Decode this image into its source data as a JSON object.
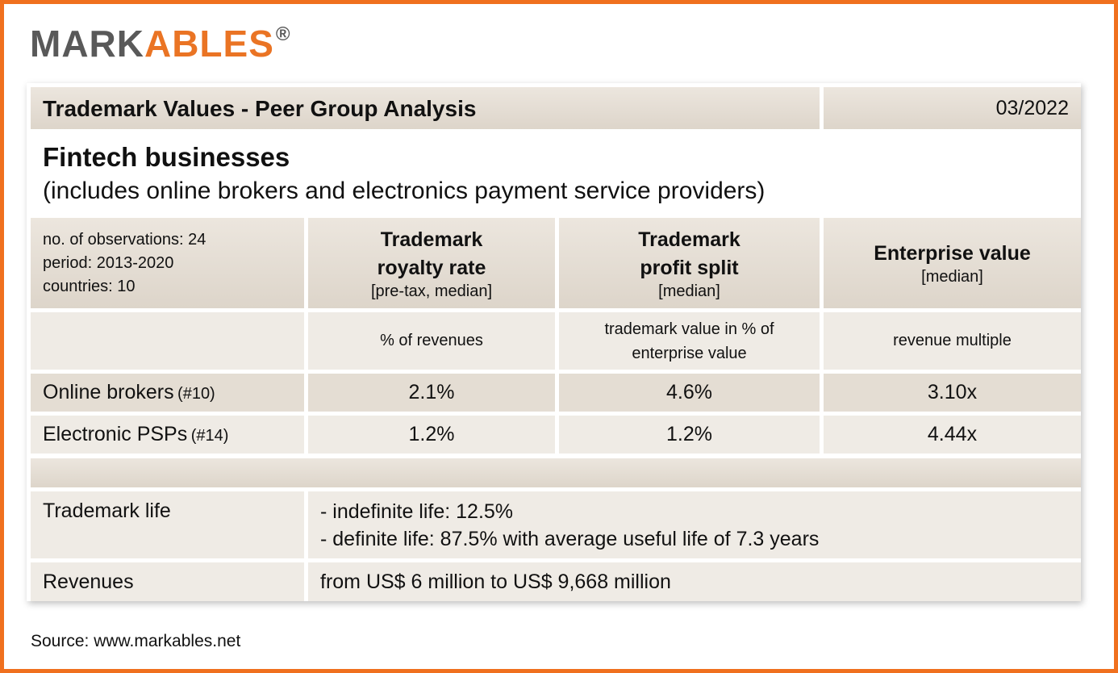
{
  "logo": {
    "dark": "MARK",
    "orange": "ABLES",
    "mark": "®"
  },
  "header": {
    "title": "Trademark Values - Peer Group Analysis",
    "date": "03/2022"
  },
  "subtitle": {
    "title": "Fintech businesses",
    "note": "(includes online brokers and electronics payment service providers)"
  },
  "table": {
    "info": [
      "no. of observations: 24",
      "period: 2013-2020",
      "countries: 10"
    ],
    "columns": [
      {
        "title_lines": [
          "Trademark",
          "royalty rate"
        ],
        "note": "[pre-tax, median]",
        "unit": "% of revenues"
      },
      {
        "title_lines": [
          "Trademark",
          "profit split"
        ],
        "note": "[median]",
        "unit": "trademark value in % of enterprise value"
      },
      {
        "title_lines": [
          "Enterprise value"
        ],
        "note": "[median]",
        "unit": "revenue multiple"
      }
    ],
    "rows": [
      {
        "name": "Online brokers",
        "count": "(#10)",
        "values": [
          "2.1%",
          "4.6%",
          "3.10x"
        ]
      },
      {
        "name": "Electronic PSPs",
        "count": "(#14)",
        "values": [
          "1.2%",
          "1.2%",
          "4.44x"
        ]
      }
    ]
  },
  "details": [
    {
      "label": "Trademark life",
      "lines": [
        "- indefinite life: 12.5%",
        "- definite life: 87.5% with average useful life of 7.3 years"
      ]
    },
    {
      "label": "Revenues",
      "lines": [
        "from US$ 6 million to US$ 9,668 million"
      ]
    }
  ],
  "source": "Source: www.markables.net"
}
